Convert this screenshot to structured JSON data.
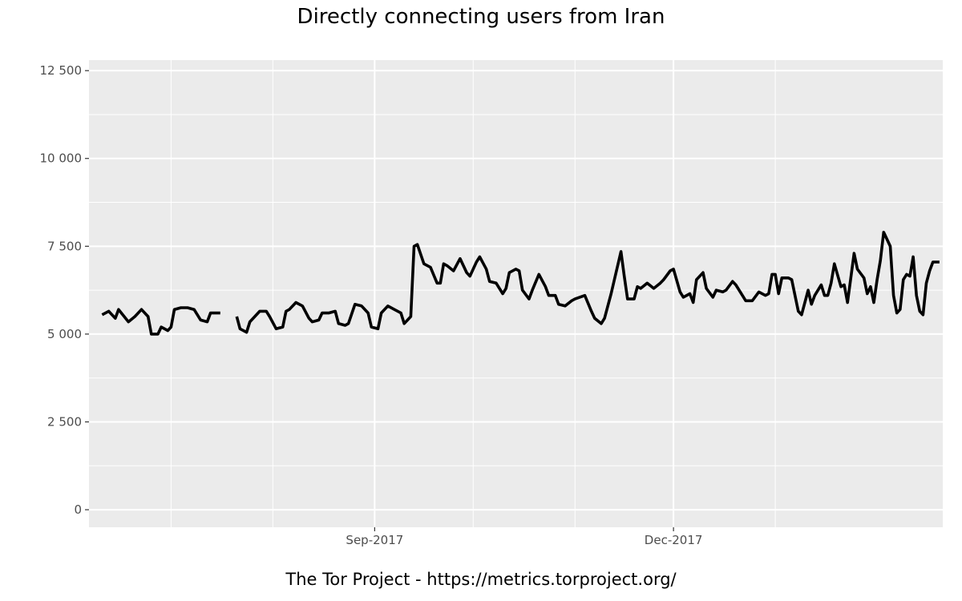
{
  "chart_data": {
    "type": "line",
    "title": "Directly connecting users from Iran",
    "caption": "The Tor Project - https://metrics.torproject.org/",
    "xlabel": "",
    "ylabel": "",
    "x_range": [
      "2017-06-06",
      "2018-02-21"
    ],
    "ylim": [
      -500,
      12800
    ],
    "y_ticks": [
      {
        "value": 0,
        "label": "0"
      },
      {
        "value": 2500,
        "label": "2 500"
      },
      {
        "value": 5000,
        "label": "5 000"
      },
      {
        "value": 7500,
        "label": "7 500"
      },
      {
        "value": 10000,
        "label": "10 000"
      },
      {
        "value": 12500,
        "label": "12 500"
      }
    ],
    "x_ticks": [
      {
        "date": "2017-09-01",
        "label": "Sep-2017"
      },
      {
        "date": "2017-12-01",
        "label": "Dec-2017"
      }
    ],
    "x_minor_ticks": [
      "2017-07-01",
      "2017-08-01",
      "2017-10-01",
      "2017-11-01",
      "2018-01-01"
    ],
    "grid": true,
    "series": [
      {
        "color": "#000000",
        "points": [
          [
            "2017-06-10",
            5550
          ],
          [
            "2017-06-12",
            5650
          ],
          [
            "2017-06-14",
            5450
          ],
          [
            "2017-06-15",
            5700
          ],
          [
            "2017-06-18",
            5350
          ],
          [
            "2017-06-20",
            5500
          ],
          [
            "2017-06-22",
            5700
          ],
          [
            "2017-06-24",
            5500
          ],
          [
            "2017-06-25",
            5000
          ],
          [
            "2017-06-27",
            5000
          ],
          [
            "2017-06-28",
            5200
          ],
          [
            "2017-06-30",
            5100
          ],
          [
            "2017-07-01",
            5200
          ],
          [
            "2017-07-02",
            5700
          ],
          [
            "2017-07-04",
            5750
          ],
          [
            "2017-07-06",
            5750
          ],
          [
            "2017-07-08",
            5700
          ],
          [
            "2017-07-10",
            5400
          ],
          [
            "2017-07-12",
            5350
          ],
          [
            "2017-07-13",
            5600
          ],
          [
            "2017-07-16",
            5600
          ],
          null,
          [
            "2017-07-21",
            5500
          ],
          [
            "2017-07-22",
            5150
          ],
          [
            "2017-07-24",
            5050
          ],
          [
            "2017-07-25",
            5350
          ],
          [
            "2017-07-28",
            5650
          ],
          [
            "2017-07-30",
            5650
          ],
          [
            "2017-07-31",
            5500
          ],
          [
            "2017-08-02",
            5150
          ],
          [
            "2017-08-04",
            5200
          ],
          [
            "2017-08-05",
            5650
          ],
          [
            "2017-08-06",
            5700
          ],
          [
            "2017-08-08",
            5900
          ],
          [
            "2017-08-10",
            5800
          ],
          [
            "2017-08-12",
            5450
          ],
          [
            "2017-08-13",
            5350
          ],
          [
            "2017-08-15",
            5400
          ],
          [
            "2017-08-16",
            5600
          ],
          [
            "2017-08-18",
            5600
          ],
          [
            "2017-08-20",
            5650
          ],
          [
            "2017-08-21",
            5300
          ],
          [
            "2017-08-23",
            5250
          ],
          [
            "2017-08-24",
            5300
          ],
          [
            "2017-08-26",
            5850
          ],
          [
            "2017-08-28",
            5800
          ],
          [
            "2017-08-30",
            5600
          ],
          [
            "2017-08-31",
            5200
          ],
          [
            "2017-09-02",
            5150
          ],
          [
            "2017-09-03",
            5600
          ],
          [
            "2017-09-05",
            5800
          ],
          [
            "2017-09-07",
            5700
          ],
          [
            "2017-09-09",
            5600
          ],
          [
            "2017-09-10",
            5300
          ],
          [
            "2017-09-12",
            5500
          ],
          [
            "2017-09-13",
            7500
          ],
          [
            "2017-09-14",
            7550
          ],
          [
            "2017-09-16",
            7000
          ],
          [
            "2017-09-18",
            6900
          ],
          [
            "2017-09-20",
            6450
          ],
          [
            "2017-09-21",
            6450
          ],
          [
            "2017-09-22",
            7000
          ],
          [
            "2017-09-23",
            6950
          ],
          [
            "2017-09-25",
            6800
          ],
          [
            "2017-09-27",
            7150
          ],
          [
            "2017-09-29",
            6750
          ],
          [
            "2017-09-30",
            6650
          ],
          [
            "2017-10-02",
            7050
          ],
          [
            "2017-10-03",
            7200
          ],
          [
            "2017-10-05",
            6850
          ],
          [
            "2017-10-06",
            6500
          ],
          [
            "2017-10-08",
            6450
          ],
          [
            "2017-10-10",
            6150
          ],
          [
            "2017-10-11",
            6300
          ],
          [
            "2017-10-12",
            6750
          ],
          [
            "2017-10-14",
            6850
          ],
          [
            "2017-10-15",
            6800
          ],
          [
            "2017-10-16",
            6250
          ],
          [
            "2017-10-18",
            6000
          ],
          [
            "2017-10-19",
            6250
          ],
          [
            "2017-10-21",
            6700
          ],
          [
            "2017-10-23",
            6350
          ],
          [
            "2017-10-24",
            6100
          ],
          [
            "2017-10-26",
            6100
          ],
          [
            "2017-10-27",
            5850
          ],
          [
            "2017-10-29",
            5800
          ],
          [
            "2017-10-31",
            5950
          ],
          [
            "2017-11-01",
            6000
          ],
          [
            "2017-11-04",
            6100
          ],
          [
            "2017-11-06",
            5650
          ],
          [
            "2017-11-07",
            5450
          ],
          [
            "2017-11-09",
            5300
          ],
          [
            "2017-11-10",
            5450
          ],
          [
            "2017-11-12",
            6150
          ],
          [
            "2017-11-15",
            7350
          ],
          [
            "2017-11-16",
            6650
          ],
          [
            "2017-11-17",
            6000
          ],
          [
            "2017-11-19",
            6000
          ],
          [
            "2017-11-20",
            6350
          ],
          [
            "2017-11-21",
            6300
          ],
          [
            "2017-11-23",
            6450
          ],
          [
            "2017-11-25",
            6300
          ],
          [
            "2017-11-27",
            6450
          ],
          [
            "2017-11-28",
            6550
          ],
          [
            "2017-11-30",
            6800
          ],
          [
            "2017-12-01",
            6850
          ],
          [
            "2017-12-03",
            6200
          ],
          [
            "2017-12-04",
            6050
          ],
          [
            "2017-12-06",
            6150
          ],
          [
            "2017-12-07",
            5900
          ],
          [
            "2017-12-08",
            6550
          ],
          [
            "2017-12-10",
            6750
          ],
          [
            "2017-12-11",
            6300
          ],
          [
            "2017-12-13",
            6050
          ],
          [
            "2017-12-14",
            6250
          ],
          [
            "2017-12-16",
            6200
          ],
          [
            "2017-12-17",
            6250
          ],
          [
            "2017-12-19",
            6500
          ],
          [
            "2017-12-20",
            6400
          ],
          [
            "2017-12-22",
            6100
          ],
          [
            "2017-12-23",
            5950
          ],
          [
            "2017-12-25",
            5950
          ],
          [
            "2017-12-27",
            6200
          ],
          [
            "2017-12-29",
            6100
          ],
          [
            "2017-12-30",
            6150
          ],
          [
            "2017-12-31",
            6700
          ],
          [
            "2018-01-01",
            6700
          ],
          [
            "2018-01-02",
            6150
          ],
          [
            "2018-01-03",
            6600
          ],
          [
            "2018-01-05",
            6600
          ],
          [
            "2018-01-06",
            6550
          ],
          [
            "2018-01-08",
            5650
          ],
          [
            "2018-01-09",
            5550
          ],
          [
            "2018-01-11",
            6250
          ],
          [
            "2018-01-12",
            5850
          ],
          [
            "2018-01-13",
            6100
          ],
          [
            "2018-01-15",
            6400
          ],
          [
            "2018-01-16",
            6100
          ],
          [
            "2018-01-17",
            6100
          ],
          [
            "2018-01-18",
            6450
          ],
          [
            "2018-01-19",
            7000
          ],
          [
            "2018-01-21",
            6350
          ],
          [
            "2018-01-22",
            6400
          ],
          [
            "2018-01-23",
            5900
          ],
          [
            "2018-01-25",
            7300
          ],
          [
            "2018-01-26",
            6850
          ],
          [
            "2018-01-28",
            6600
          ],
          [
            "2018-01-29",
            6150
          ],
          [
            "2018-01-30",
            6350
          ],
          [
            "2018-01-31",
            5900
          ],
          [
            "2018-02-01",
            6550
          ],
          [
            "2018-02-02",
            7100
          ],
          [
            "2018-02-03",
            7900
          ],
          [
            "2018-02-05",
            7500
          ],
          [
            "2018-02-06",
            6100
          ],
          [
            "2018-02-07",
            5600
          ],
          [
            "2018-02-08",
            5700
          ],
          [
            "2018-02-09",
            6550
          ],
          [
            "2018-02-10",
            6700
          ],
          [
            "2018-02-11",
            6650
          ],
          [
            "2018-02-12",
            7200
          ],
          [
            "2018-02-13",
            6100
          ],
          [
            "2018-02-14",
            5650
          ],
          [
            "2018-02-15",
            5550
          ],
          [
            "2018-02-16",
            6450
          ],
          [
            "2018-02-17",
            6800
          ],
          [
            "2018-02-18",
            7050
          ],
          [
            "2018-02-19",
            7050
          ],
          [
            "2018-02-20",
            7050
          ]
        ]
      }
    ]
  }
}
